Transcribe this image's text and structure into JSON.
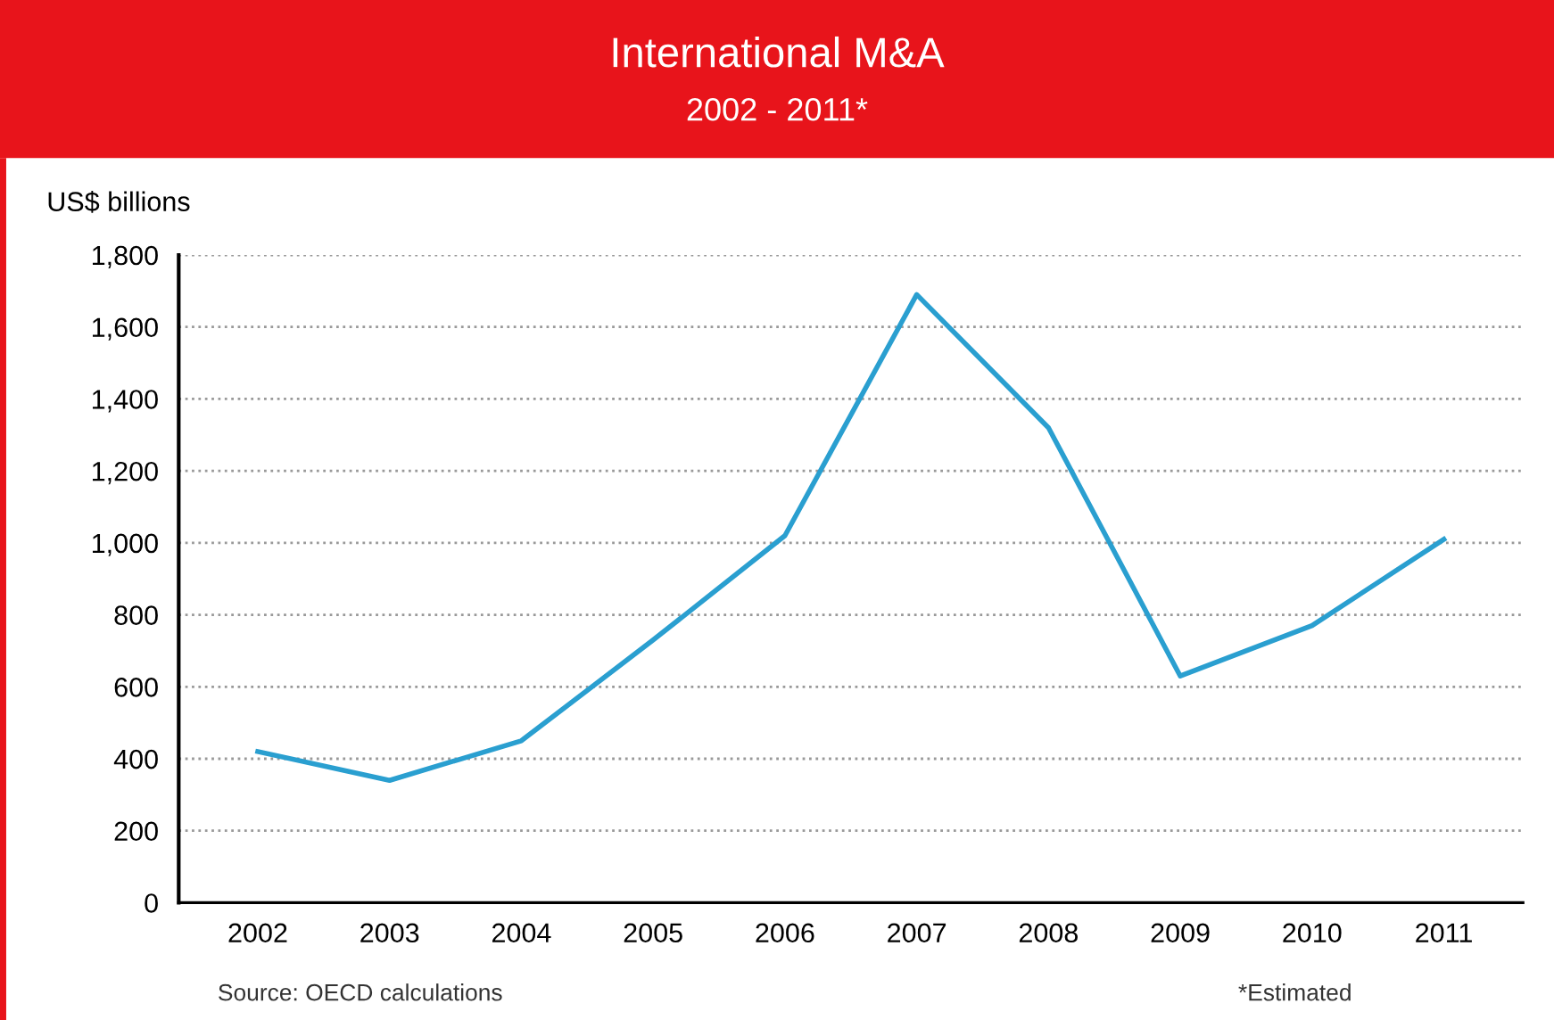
{
  "chart_data": {
    "type": "line",
    "title": "International M&A",
    "subtitle": "2002 - 2011*",
    "ylabel": "US$ billions",
    "categories": [
      "2002",
      "2003",
      "2004",
      "2005",
      "2006",
      "2007",
      "2008",
      "2009",
      "2010",
      "2011"
    ],
    "series": [
      {
        "color": "#2a9fd0",
        "values": [
          420,
          340,
          450,
          730,
          1020,
          1690,
          1320,
          630,
          770,
          1010
        ]
      }
    ],
    "ylim": [
      0,
      1800
    ],
    "yticks": [
      0,
      200,
      400,
      600,
      800,
      {
        "value": 1000,
        "label": "1,000"
      },
      {
        "value": 1200,
        "label": "1,200"
      },
      {
        "value": 1400,
        "label": "1,400"
      },
      {
        "value": 1600,
        "label": "1,600"
      },
      {
        "value": 1800,
        "label": "1,800"
      }
    ],
    "grid": "y",
    "marker": "none",
    "line_style": "solid",
    "annotations": [
      "Source: OECD calculations",
      "*Estimated"
    ]
  }
}
